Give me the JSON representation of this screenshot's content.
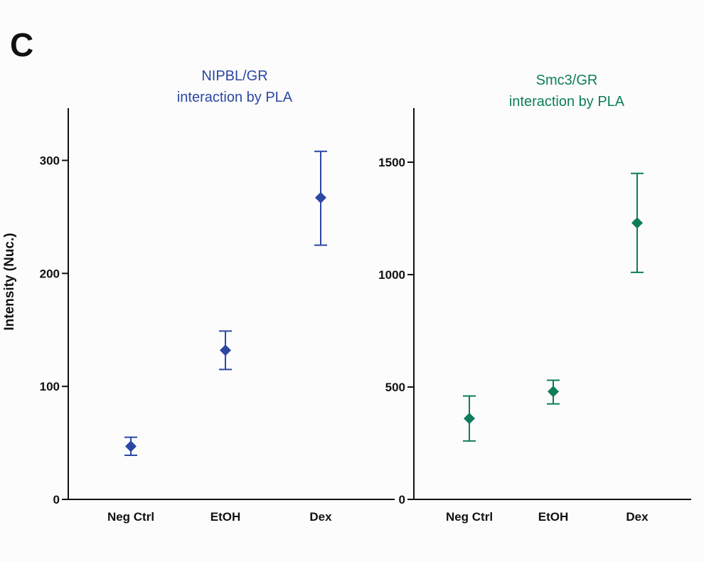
{
  "panel_letter": "C",
  "colors": {
    "left": "#2c47a3",
    "right": "#0e7d5c",
    "axis": "#111111"
  },
  "chart_data": [
    {
      "type": "scatter",
      "title_lines": [
        "NIPBL/GR",
        "interaction by PLA"
      ],
      "ylabel": "Intensity (Nuc.)",
      "xlabel": "",
      "categories": [
        "Neg Ctrl",
        "EtOH",
        "Dex"
      ],
      "ylim": [
        0,
        350
      ],
      "yticks": [
        0,
        100,
        200,
        300
      ],
      "series": [
        {
          "values": [
            47,
            132,
            267
          ],
          "err_low": [
            39,
            115,
            225
          ],
          "err_high": [
            55,
            149,
            308
          ]
        }
      ],
      "marker": "diamond",
      "grid": false
    },
    {
      "type": "scatter",
      "title_lines": [
        "Smc3/GR",
        "interaction by PLA"
      ],
      "ylabel": "",
      "xlabel": "",
      "categories": [
        "Neg Ctrl",
        "EtOH",
        "Dex"
      ],
      "ylim": [
        0,
        1750
      ],
      "yticks": [
        0,
        500,
        1000,
        1500
      ],
      "series": [
        {
          "values": [
            360,
            480,
            1230
          ],
          "err_low": [
            260,
            425,
            1010
          ],
          "err_high": [
            460,
            530,
            1450
          ]
        }
      ],
      "marker": "diamond",
      "grid": false
    }
  ]
}
